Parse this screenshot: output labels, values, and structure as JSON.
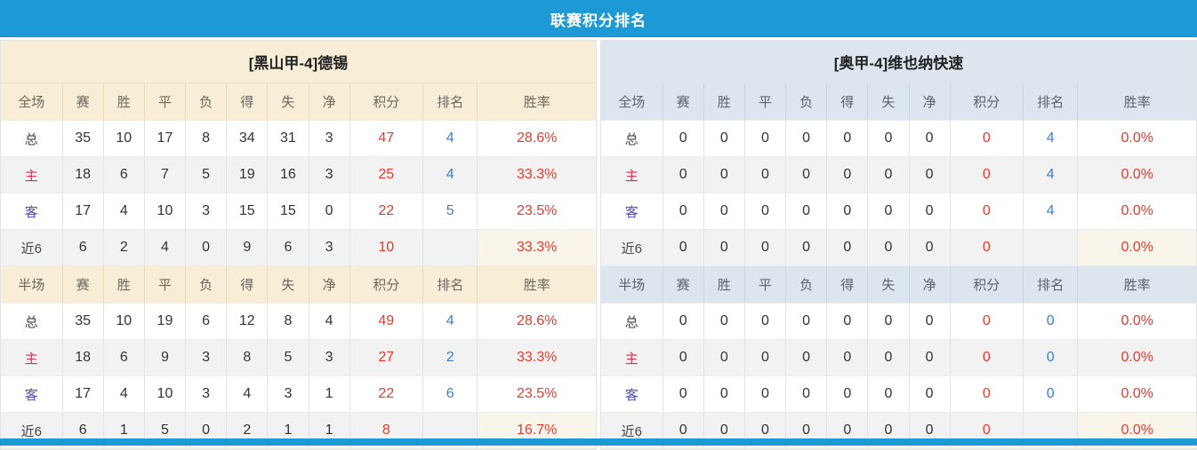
{
  "title": "联赛积分排名",
  "colors": {
    "accent": "#1d9ad5",
    "cream": "#f8eed8",
    "bluegray": "#dde6ef",
    "red": "#e8392d",
    "rankblue": "#3e7ec9",
    "homered": "#d6324a",
    "awayblue": "#4747d2",
    "rowalt": "#f2f2f2",
    "creamcell": "#f9f5eb",
    "border": "#e3e3e3",
    "creamborder": "#ead9b8",
    "blueborder": "#c9d6e3"
  },
  "columns": [
    "赛",
    "胜",
    "平",
    "负",
    "得",
    "失",
    "净",
    "积分",
    "排名",
    "胜率"
  ],
  "teams": [
    {
      "name": "[黑山甲-4]德锡",
      "theme": "cream",
      "sections": [
        {
          "label": "全场",
          "rows": [
            {
              "label": "总",
              "type": "total",
              "values": [
                "35",
                "10",
                "17",
                "8",
                "34",
                "31",
                "3"
              ],
              "points": "47",
              "rank": "4",
              "rate": "28.6%"
            },
            {
              "label": "主",
              "type": "home",
              "values": [
                "18",
                "6",
                "7",
                "5",
                "19",
                "16",
                "3"
              ],
              "points": "25",
              "rank": "4",
              "rate": "33.3%"
            },
            {
              "label": "客",
              "type": "away",
              "values": [
                "17",
                "4",
                "10",
                "3",
                "15",
                "15",
                "0"
              ],
              "points": "22",
              "rank": "5",
              "rate": "23.5%"
            },
            {
              "label": "近6",
              "type": "recent",
              "values": [
                "6",
                "2",
                "4",
                "0",
                "9",
                "6",
                "3"
              ],
              "points": "10",
              "rank": "",
              "rate": "33.3%"
            }
          ]
        },
        {
          "label": "半场",
          "rows": [
            {
              "label": "总",
              "type": "total",
              "values": [
                "35",
                "10",
                "19",
                "6",
                "12",
                "8",
                "4"
              ],
              "points": "49",
              "rank": "4",
              "rate": "28.6%"
            },
            {
              "label": "主",
              "type": "home",
              "values": [
                "18",
                "6",
                "9",
                "3",
                "8",
                "5",
                "3"
              ],
              "points": "27",
              "rank": "2",
              "rate": "33.3%"
            },
            {
              "label": "客",
              "type": "away",
              "values": [
                "17",
                "4",
                "10",
                "3",
                "4",
                "3",
                "1"
              ],
              "points": "22",
              "rank": "6",
              "rate": "23.5%"
            },
            {
              "label": "近6",
              "type": "recent",
              "values": [
                "6",
                "1",
                "5",
                "0",
                "2",
                "1",
                "1"
              ],
              "points": "8",
              "rank": "",
              "rate": "16.7%"
            }
          ]
        }
      ]
    },
    {
      "name": "[奥甲-4]维也纳快速",
      "theme": "blue",
      "sections": [
        {
          "label": "全场",
          "rows": [
            {
              "label": "总",
              "type": "total",
              "values": [
                "0",
                "0",
                "0",
                "0",
                "0",
                "0",
                "0"
              ],
              "points": "0",
              "rank": "4",
              "rate": "0.0%"
            },
            {
              "label": "主",
              "type": "home",
              "values": [
                "0",
                "0",
                "0",
                "0",
                "0",
                "0",
                "0"
              ],
              "points": "0",
              "rank": "4",
              "rate": "0.0%"
            },
            {
              "label": "客",
              "type": "away",
              "values": [
                "0",
                "0",
                "0",
                "0",
                "0",
                "0",
                "0"
              ],
              "points": "0",
              "rank": "4",
              "rate": "0.0%"
            },
            {
              "label": "近6",
              "type": "recent",
              "values": [
                "0",
                "0",
                "0",
                "0",
                "0",
                "0",
                "0"
              ],
              "points": "0",
              "rank": "",
              "rate": "0.0%"
            }
          ]
        },
        {
          "label": "半场",
          "rows": [
            {
              "label": "总",
              "type": "total",
              "values": [
                "0",
                "0",
                "0",
                "0",
                "0",
                "0",
                "0"
              ],
              "points": "0",
              "rank": "0",
              "rate": "0.0%"
            },
            {
              "label": "主",
              "type": "home",
              "values": [
                "0",
                "0",
                "0",
                "0",
                "0",
                "0",
                "0"
              ],
              "points": "0",
              "rank": "0",
              "rate": "0.0%"
            },
            {
              "label": "客",
              "type": "away",
              "values": [
                "0",
                "0",
                "0",
                "0",
                "0",
                "0",
                "0"
              ],
              "points": "0",
              "rank": "0",
              "rate": "0.0%"
            },
            {
              "label": "近6",
              "type": "recent",
              "values": [
                "0",
                "0",
                "0",
                "0",
                "0",
                "0",
                "0"
              ],
              "points": "0",
              "rank": "",
              "rate": "0.0%"
            }
          ]
        }
      ]
    }
  ]
}
